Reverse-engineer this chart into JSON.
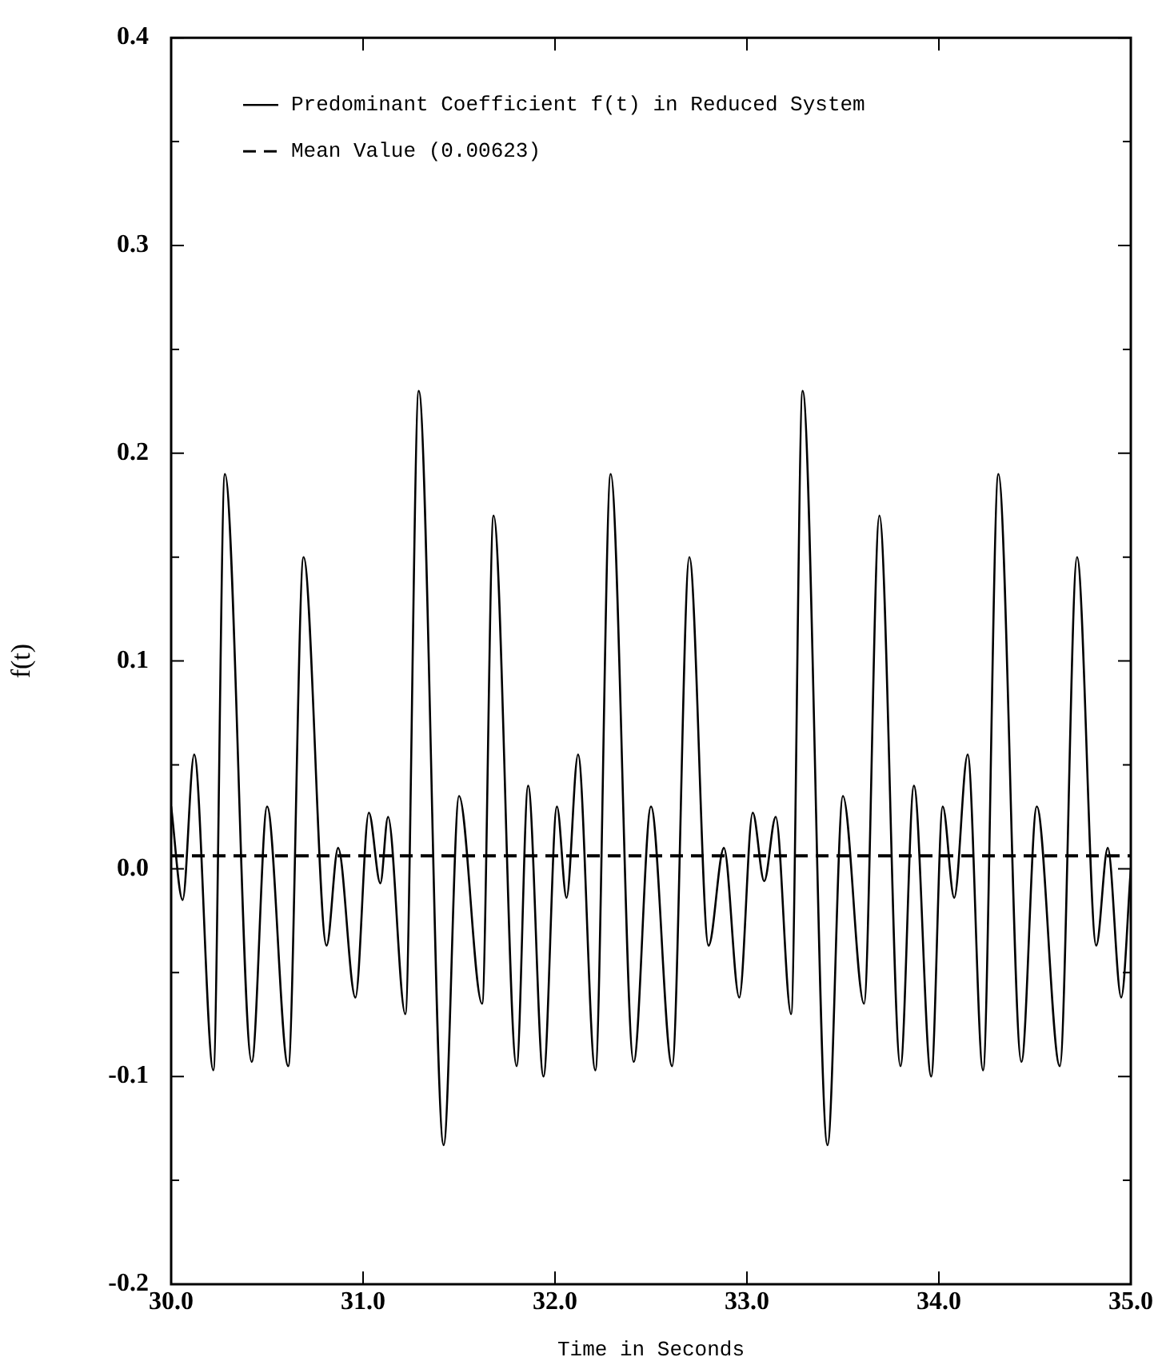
{
  "chart_data": {
    "type": "line",
    "xlabel": "Time in Seconds",
    "ylabel": "f(t)",
    "xlim": [
      30,
      35
    ],
    "ylim": [
      -0.2,
      0.4
    ],
    "xticks": [
      {
        "value": 30,
        "label": "30.0"
      },
      {
        "value": 31,
        "label": "31.0"
      },
      {
        "value": 32,
        "label": "32.0"
      },
      {
        "value": 33,
        "label": "33.0"
      },
      {
        "value": 34,
        "label": "34.0"
      },
      {
        "value": 35,
        "label": "35.0"
      }
    ],
    "yticks": [
      {
        "value": -0.2,
        "label": "-0.2"
      },
      {
        "value": -0.15,
        "label": null
      },
      {
        "value": -0.1,
        "label": "-0.1"
      },
      {
        "value": -0.05,
        "label": null
      },
      {
        "value": 0,
        "label": "0.0"
      },
      {
        "value": 0.05,
        "label": null
      },
      {
        "value": 0.1,
        "label": "0.1"
      },
      {
        "value": 0.15,
        "label": null
      },
      {
        "value": 0.2,
        "label": "0.2"
      },
      {
        "value": 0.25,
        "label": null
      },
      {
        "value": 0.3,
        "label": "0.3"
      },
      {
        "value": 0.35,
        "label": null
      },
      {
        "value": 0.4,
        "label": "0.4"
      }
    ],
    "grid": false,
    "legend": "top left",
    "marker": "none",
    "series": [
      {
        "name": "Predominant Coefficient f(t) in Reduced System",
        "color": "#000000",
        "line_style": "solid",
        "x": [
          30,
          30.06,
          30.12,
          30.22,
          30.28,
          30.42,
          30.5,
          30.61,
          30.69,
          30.81,
          30.87,
          30.96,
          31.03,
          31.09,
          31.13,
          31.22,
          31.29,
          31.42,
          31.5,
          31.62,
          31.68,
          31.8,
          31.86,
          31.94,
          32.01,
          32.06,
          32.12,
          32.21,
          32.29,
          32.41,
          32.5,
          32.61,
          32.7,
          32.8,
          32.88,
          32.96,
          33.03,
          33.09,
          33.15,
          33.23,
          33.29,
          33.42,
          33.5,
          33.61,
          33.69,
          33.8,
          33.87,
          33.96,
          34.02,
          34.08,
          34.15,
          34.23,
          34.31,
          34.43,
          34.51,
          34.63,
          34.72,
          34.82,
          34.88,
          34.95,
          35
        ],
        "values": [
          0.03,
          -0.015,
          0.055,
          -0.097,
          0.19,
          -0.093,
          0.03,
          -0.095,
          0.15,
          -0.037,
          0.01,
          -0.062,
          0.027,
          -0.007,
          0.025,
          -0.07,
          0.23,
          -0.133,
          0.035,
          -0.065,
          0.17,
          -0.095,
          0.04,
          -0.1,
          0.03,
          -0.014,
          0.055,
          -0.097,
          0.19,
          -0.093,
          0.03,
          -0.095,
          0.15,
          -0.037,
          0.01,
          -0.062,
          0.027,
          -0.006,
          0.025,
          -0.07,
          0.23,
          -0.133,
          0.035,
          -0.065,
          0.17,
          -0.095,
          0.04,
          -0.1,
          0.03,
          -0.014,
          0.055,
          -0.097,
          0.19,
          -0.093,
          0.03,
          -0.095,
          0.15,
          -0.037,
          0.01,
          -0.062,
          0.0
        ]
      }
    ],
    "ref_lines": [
      {
        "axis": "y",
        "value": 0.00623,
        "label": "Mean Value (0.00623)",
        "color": "#000000",
        "line_style": "dashed"
      }
    ]
  }
}
